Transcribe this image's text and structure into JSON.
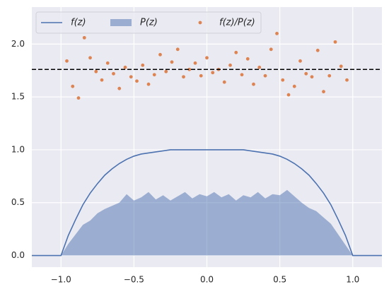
{
  "chart_data": {
    "type": "line",
    "xlim": [
      -1.2,
      1.2
    ],
    "ylim": [
      -0.11,
      2.35
    ],
    "xticks": [
      {
        "value": -1.0,
        "label": "−1.0"
      },
      {
        "value": -0.5,
        "label": "−0.5"
      },
      {
        "value": 0,
        "label": "0.0"
      },
      0.5,
      {
        "value": 1.0,
        "label": "1.0"
      }
    ],
    "yticks": [
      {
        "value": 0,
        "label": "0.0"
      },
      0.5,
      {
        "value": 1.0,
        "label": "1.0"
      },
      1.5,
      {
        "value": 2.0,
        "label": "2.0"
      }
    ],
    "grid": true,
    "legend": "upper left",
    "hline": 1.76,
    "series": [
      {
        "name": "f(z)",
        "type": "line",
        "color": "#4c72b0",
        "x": [
          -1.2,
          -1.15,
          -1.1,
          -1.05,
          -1.0,
          -0.95,
          -0.9,
          -0.85,
          -0.8,
          -0.75,
          -0.7,
          -0.65,
          -0.6,
          -0.55,
          -0.5,
          -0.45,
          -0.4,
          -0.35,
          -0.3,
          -0.25,
          -0.2,
          -0.15,
          -0.1,
          -0.05,
          0,
          0.05,
          0.1,
          0.15,
          0.2,
          0.25,
          0.3,
          0.35,
          0.4,
          0.45,
          0.5,
          0.55,
          0.6,
          0.65,
          0.7,
          0.75,
          0.8,
          0.85,
          0.9,
          0.95,
          1.0,
          1.05,
          1.1,
          1.15,
          1.2
        ],
        "values": [
          0,
          0,
          0,
          0,
          0,
          0.19,
          0.34,
          0.48,
          0.59,
          0.68,
          0.76,
          0.82,
          0.87,
          0.91,
          0.94,
          0.96,
          0.97,
          0.98,
          0.99,
          1,
          1,
          1,
          1,
          1,
          1,
          1,
          1,
          1,
          1,
          1,
          0.99,
          0.98,
          0.97,
          0.96,
          0.94,
          0.91,
          0.87,
          0.82,
          0.76,
          0.68,
          0.59,
          0.48,
          0.34,
          0.19,
          0,
          0,
          0,
          0,
          0
        ]
      },
      {
        "name": "P(z)",
        "type": "area",
        "color": "#4c72b0",
        "x": [
          -1.2,
          -1.15,
          -1.1,
          -1.05,
          -1.0,
          -0.95,
          -0.9,
          -0.85,
          -0.8,
          -0.75,
          -0.7,
          -0.65,
          -0.6,
          -0.55,
          -0.5,
          -0.45,
          -0.4,
          -0.35,
          -0.3,
          -0.25,
          -0.2,
          -0.15,
          -0.1,
          -0.05,
          0,
          0.05,
          0.1,
          0.15,
          0.2,
          0.25,
          0.3,
          0.35,
          0.4,
          0.45,
          0.5,
          0.55,
          0.6,
          0.65,
          0.7,
          0.75,
          0.8,
          0.85,
          0.9,
          0.95,
          1.0,
          1.05,
          1.1,
          1.15,
          1.2
        ],
        "values": [
          0,
          0,
          0,
          0,
          0,
          0.11,
          0.2,
          0.29,
          0.33,
          0.4,
          0.44,
          0.47,
          0.5,
          0.58,
          0.52,
          0.55,
          0.6,
          0.53,
          0.57,
          0.52,
          0.56,
          0.6,
          0.54,
          0.58,
          0.56,
          0.6,
          0.55,
          0.58,
          0.52,
          0.57,
          0.55,
          0.6,
          0.54,
          0.58,
          0.57,
          0.62,
          0.56,
          0.5,
          0.45,
          0.42,
          0.36,
          0.3,
          0.2,
          0.1,
          0,
          0,
          0,
          0,
          0
        ]
      },
      {
        "name": "f(z)/P(z)",
        "type": "scatter",
        "color": "#dd8452",
        "x": [
          -0.96,
          -0.92,
          -0.88,
          -0.84,
          -0.8,
          -0.76,
          -0.72,
          -0.68,
          -0.64,
          -0.6,
          -0.56,
          -0.52,
          -0.48,
          -0.44,
          -0.4,
          -0.36,
          -0.32,
          -0.28,
          -0.24,
          -0.2,
          -0.16,
          -0.12,
          -0.08,
          -0.04,
          0,
          0.04,
          0.08,
          0.12,
          0.16,
          0.2,
          0.24,
          0.28,
          0.32,
          0.36,
          0.4,
          0.44,
          0.48,
          0.52,
          0.56,
          0.6,
          0.64,
          0.68,
          0.72,
          0.76,
          0.8,
          0.84,
          0.88,
          0.92,
          0.96
        ],
        "values": [
          1.84,
          1.6,
          1.49,
          2.06,
          1.87,
          1.74,
          1.66,
          1.82,
          1.72,
          1.58,
          1.78,
          1.69,
          1.65,
          1.8,
          1.62,
          1.71,
          1.9,
          1.74,
          1.83,
          1.95,
          1.69,
          1.76,
          1.82,
          1.7,
          1.87,
          1.73,
          1.76,
          1.64,
          1.8,
          1.92,
          1.71,
          1.86,
          1.62,
          1.78,
          1.7,
          1.95,
          2.1,
          1.66,
          1.52,
          1.6,
          1.84,
          1.72,
          1.69,
          1.94,
          1.55,
          1.7,
          2.02,
          1.79,
          1.66
        ]
      }
    ]
  }
}
